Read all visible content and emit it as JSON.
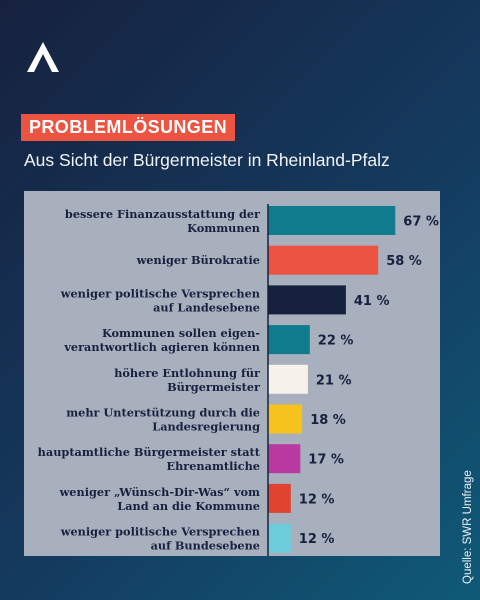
{
  "header": {
    "logo_icon": "stylized-a-logo",
    "headline": "PROBLEMLÖSUNGEN",
    "subtitle": "Aus Sicht der Bürgermeister in Rheinland-Pfalz"
  },
  "source": "Quelle: SWR Umfrage",
  "colors": {
    "headline_bg": "#ec5340",
    "panel_bg": "#a8b0bd",
    "text_dark": "#16213f"
  },
  "chart_data": {
    "type": "bar",
    "orientation": "horizontal",
    "title": "",
    "xlabel": "",
    "ylabel": "",
    "xlim": [
      0,
      80
    ],
    "x_ticks": [
      "0",
      "20",
      "40",
      "60",
      "80"
    ],
    "value_suffix": " %",
    "grid": false,
    "legend": "none",
    "categories": [
      [
        "bessere Finanzausstattung der",
        "Kommunen"
      ],
      [
        "weniger Bürokratie"
      ],
      [
        "weniger politische Versprechen",
        "auf Landesebene"
      ],
      [
        "Kommunen sollen eigen-",
        "verantwortlich agieren können"
      ],
      [
        "höhere Entlohnung für",
        "Bürgermeister"
      ],
      [
        "mehr Unterstützung durch die",
        "Landesregierung"
      ],
      [
        "hauptamtliche Bürgermeister statt",
        "Ehrenamtliche"
      ],
      [
        "weniger „Wünsch-Dir-Was“ vom",
        "Land an die Kommune"
      ],
      [
        "weniger politische Versprechen",
        "auf Bundesebene"
      ]
    ],
    "values": [
      67,
      58,
      41,
      22,
      21,
      18,
      17,
      12,
      12
    ],
    "bar_colors": [
      "#0f7b8c",
      "#ec5340",
      "#16213f",
      "#0f7b8c",
      "#f6f1ea",
      "#f6c21d",
      "#b83aa0",
      "#e0432f",
      "#6cccd9"
    ]
  }
}
